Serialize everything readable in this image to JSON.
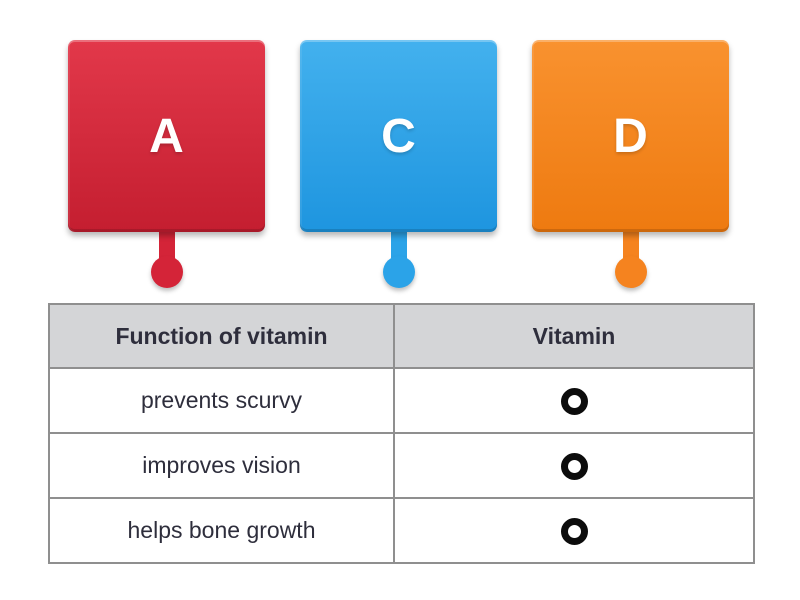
{
  "page": {
    "background": "#ffffff",
    "activity_type": "match-vitamin-to-function"
  },
  "tiles": [
    {
      "label": "A",
      "color": "#d42438",
      "color_top": "#e2384a",
      "color_bottom": "#c41e30"
    },
    {
      "label": "C",
      "color": "#2ba3e8",
      "color_top": "#43b1ee",
      "color_bottom": "#1e95df"
    },
    {
      "label": "D",
      "color": "#f5831f",
      "color_top": "#f9922f",
      "color_bottom": "#ee7a10"
    }
  ],
  "table": {
    "headers": [
      "Function of vitamin",
      "Vitamin"
    ],
    "rows": [
      {
        "function": "prevents scurvy"
      },
      {
        "function": "improves vision"
      },
      {
        "function": "helps bone growth"
      }
    ],
    "header_bg": "#d4d5d7",
    "border_color": "#8f8f8f",
    "text_color": "#2e2e3c",
    "target_color": "#0c0c0c"
  }
}
